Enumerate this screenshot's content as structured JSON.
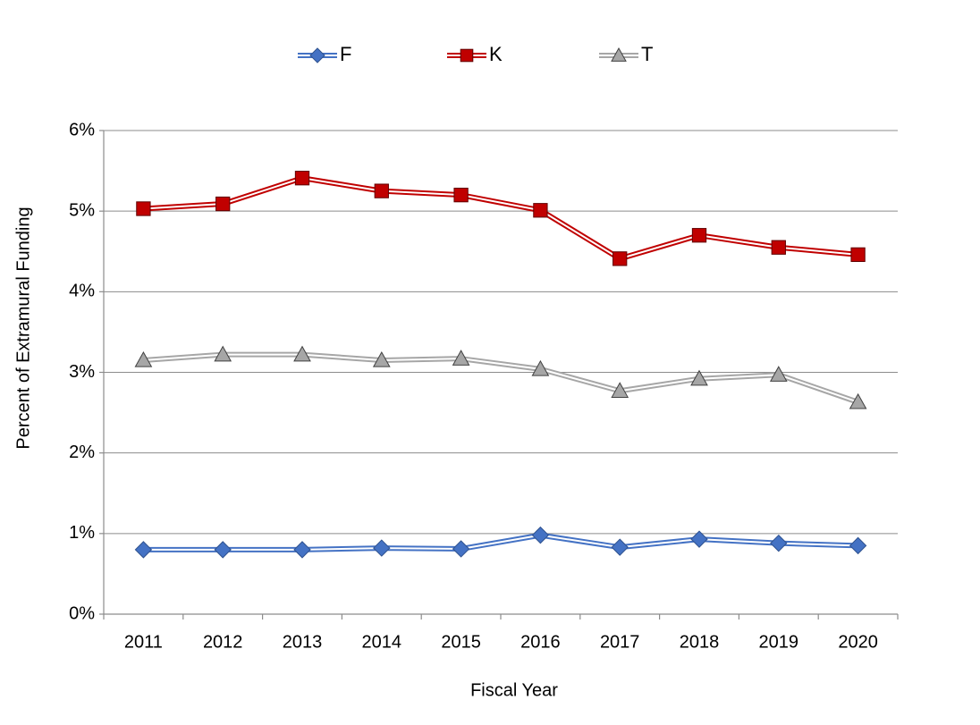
{
  "chart_data": {
    "type": "line",
    "x_label": "Fiscal Year",
    "y_label": "Percent of Extramural Funding",
    "categories": [
      "2011",
      "2012",
      "2013",
      "2014",
      "2015",
      "2016",
      "2017",
      "2018",
      "2019",
      "2020"
    ],
    "series": [
      {
        "name": "F",
        "color": "#4472c4",
        "marker": "diamond",
        "marker_color": "#4472c4",
        "marker_edge": "#2f528f",
        "values": [
          0.8,
          0.8,
          0.8,
          0.82,
          0.81,
          0.98,
          0.83,
          0.93,
          0.88,
          0.85
        ]
      },
      {
        "name": "K",
        "color": "#c00000",
        "marker": "square",
        "marker_color": "#c00000",
        "marker_edge": "#600000",
        "values": [
          5.03,
          5.09,
          5.41,
          5.25,
          5.2,
          5.01,
          4.41,
          4.7,
          4.55,
          4.46
        ]
      },
      {
        "name": "T",
        "color": "#a6a6a6",
        "marker": "triangle",
        "marker_color": "#a6a6a6",
        "marker_edge": "#404040",
        "values": [
          3.15,
          3.22,
          3.22,
          3.15,
          3.17,
          3.04,
          2.77,
          2.92,
          2.97,
          2.63
        ]
      }
    ],
    "ylim": [
      0,
      6
    ],
    "yticks": [
      {
        "value": 0,
        "label": "0%"
      },
      {
        "value": 1,
        "label": "1%"
      },
      {
        "value": 2,
        "label": "2%"
      },
      {
        "value": 3,
        "label": "3%"
      },
      {
        "value": 4,
        "label": "4%"
      },
      {
        "value": 5,
        "label": "5%"
      },
      {
        "value": 6,
        "label": "6%"
      }
    ],
    "grid": true,
    "legend": "top"
  }
}
